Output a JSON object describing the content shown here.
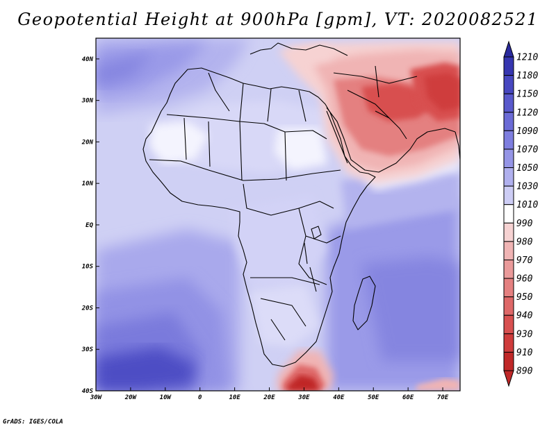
{
  "title": "Geopotential Height at 900hPa [gpm], VT: 2020082521",
  "credit": "GrADS: IGES/COLA",
  "map": {
    "lon_range": [
      -30,
      75
    ],
    "lat_range": [
      -40,
      45
    ],
    "lon_ticks": [
      {
        "value": -30,
        "label": "30W"
      },
      {
        "value": -20,
        "label": "20W"
      },
      {
        "value": -10,
        "label": "10W"
      },
      {
        "value": 0,
        "label": "0"
      },
      {
        "value": 10,
        "label": "10E"
      },
      {
        "value": 20,
        "label": "20E"
      },
      {
        "value": 30,
        "label": "30E"
      },
      {
        "value": 40,
        "label": "40E"
      },
      {
        "value": 50,
        "label": "50E"
      },
      {
        "value": 60,
        "label": "60E"
      },
      {
        "value": 70,
        "label": "70E"
      }
    ],
    "lat_ticks": [
      {
        "value": 40,
        "label": "40N"
      },
      {
        "value": 30,
        "label": "30N"
      },
      {
        "value": 20,
        "label": "20N"
      },
      {
        "value": 10,
        "label": "10N"
      },
      {
        "value": 0,
        "label": "EQ"
      },
      {
        "value": -10,
        "label": "10S"
      },
      {
        "value": -20,
        "label": "20S"
      },
      {
        "value": -30,
        "label": "30S"
      },
      {
        "value": -40,
        "label": "40S"
      }
    ],
    "ocean_color": "#cfd0f4",
    "land_color": "#e6e7fb"
  },
  "colorbar": {
    "levels": [
      "1210",
      "1180",
      "1150",
      "1120",
      "1090",
      "1070",
      "1050",
      "1030",
      "1010",
      "990",
      "980",
      "970",
      "960",
      "950",
      "940",
      "930",
      "910",
      "890"
    ],
    "colors": [
      "#2a2a9e",
      "#3636b0",
      "#4747c0",
      "#5959cc",
      "#6b6bd6",
      "#7e7edf",
      "#9595e6",
      "#b0b0ee",
      "#cdcdf5",
      "#ffffff",
      "#f6d2d2",
      "#f0b4b4",
      "#ea9a9a",
      "#e48080",
      "#de6868",
      "#d85050",
      "#cf3c3c",
      "#c02828"
    ]
  }
}
